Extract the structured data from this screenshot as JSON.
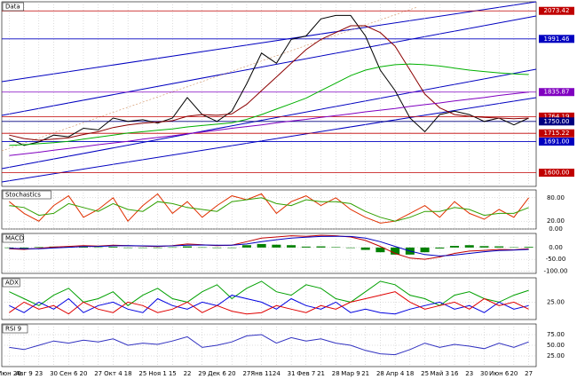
{
  "chart_data": [
    {
      "type": "line",
      "title": "Data",
      "categories": [
        "Июн 26",
        "Авг 9",
        "23",
        "30",
        "Сен 6",
        "20",
        "27",
        "Окт 4",
        "18",
        "25",
        "Ноя 1",
        "15",
        "22",
        "29",
        "Дек 6",
        "20",
        "27",
        "Янв 11",
        "24",
        "31",
        "Фев 7",
        "21",
        "28",
        "Мар 9",
        "21",
        "28",
        "Апр 4",
        "18",
        "25",
        "Май 3",
        "16",
        "23",
        "30",
        "Июн 6",
        "20",
        "27"
      ],
      "ylim": [
        1560,
        2100
      ],
      "series": [
        {
          "color": "#000000",
          "values": [
            1700,
            1680,
            1690,
            1710,
            1705,
            1730,
            1725,
            1760,
            1750,
            1755,
            1745,
            1760,
            1820,
            1770,
            1750,
            1780,
            1860,
            1950,
            1920,
            1990,
            2000,
            2050,
            2060,
            2060,
            2000,
            1900,
            1840,
            1760,
            1720,
            1770,
            1780,
            1770,
            1750,
            1760,
            1740,
            1760
          ]
        },
        {
          "color": "#8b0000",
          "values": [
            1710,
            1700,
            1695,
            1698,
            1702,
            1712,
            1720,
            1732,
            1740,
            1745,
            1748,
            1752,
            1765,
            1770,
            1768,
            1772,
            1800,
            1840,
            1880,
            1920,
            1960,
            1990,
            2010,
            2030,
            2030,
            2010,
            1970,
            1900,
            1830,
            1790,
            1770,
            1765,
            1762,
            1760,
            1758,
            1760
          ]
        },
        {
          "color": "#00b000",
          "values": [
            1680,
            1682,
            1685,
            1688,
            1692,
            1698,
            1704,
            1710,
            1716,
            1720,
            1724,
            1728,
            1734,
            1738,
            1742,
            1746,
            1756,
            1770,
            1786,
            1802,
            1818,
            1840,
            1862,
            1884,
            1900,
            1910,
            1916,
            1918,
            1916,
            1912,
            1906,
            1900,
            1896,
            1892,
            1889,
            1887
          ]
        },
        {
          "color": "#8000c0",
          "values": [
            1650,
            1655,
            1660,
            1666,
            1671,
            1676,
            1682,
            1687,
            1692,
            1698,
            1703,
            1708,
            1714,
            1719,
            1724,
            1730,
            1735,
            1740,
            1746,
            1751,
            1756,
            1762,
            1767,
            1772,
            1778,
            1783,
            1788,
            1794,
            1799,
            1804,
            1810,
            1815,
            1820,
            1826,
            1831,
            1836
          ]
        }
      ],
      "levels": [
        {
          "value": 2073.42,
          "color": "#c00000"
        },
        {
          "value": 1991.46,
          "color": "#0000c0"
        },
        {
          "value": 1835.87,
          "color": "#8000c0"
        },
        {
          "value": 1764.19,
          "color": "#c00000"
        },
        {
          "value": 1750,
          "label": "1750.00",
          "color": "#000080"
        },
        {
          "value": 1715.22,
          "color": "#c00000"
        },
        {
          "value": 1691,
          "label": "1691.00",
          "color": "#0000c0"
        },
        {
          "value": 1600,
          "label": "1600.00",
          "color": "#c00000"
        }
      ]
    },
    {
      "type": "line",
      "title": "Stochastics",
      "ylim": [
        0,
        100
      ],
      "yticks": [
        {
          "value": 0,
          "label": "0.00"
        },
        {
          "value": 20,
          "label": "20.00"
        },
        {
          "value": 80,
          "label": "80.00"
        }
      ],
      "series": [
        {
          "color": "#e03000",
          "values": [
            70,
            40,
            20,
            60,
            85,
            30,
            50,
            80,
            20,
            60,
            90,
            40,
            70,
            30,
            60,
            85,
            75,
            90,
            40,
            70,
            85,
            60,
            80,
            50,
            30,
            15,
            20,
            40,
            60,
            30,
            70,
            40,
            25,
            50,
            30,
            80
          ]
        },
        {
          "color": "#30a000",
          "values": [
            60,
            55,
            35,
            40,
            65,
            55,
            45,
            65,
            50,
            45,
            70,
            65,
            55,
            50,
            45,
            70,
            75,
            80,
            65,
            60,
            75,
            70,
            70,
            65,
            45,
            30,
            20,
            30,
            45,
            45,
            55,
            50,
            35,
            40,
            40,
            55
          ]
        }
      ]
    },
    {
      "type": "line",
      "title": "MACD",
      "ylim": [
        -110,
        60
      ],
      "yticks": [
        {
          "value": 0,
          "label": "0.00"
        },
        {
          "value": -50,
          "label": "-50.00"
        },
        {
          "value": -100,
          "label": "-100.00"
        }
      ],
      "series": [
        {
          "type": "bar",
          "color": "#008000",
          "values": [
            -2,
            -3,
            2,
            4,
            4,
            4,
            1,
            3,
            0,
            -1,
            -2,
            1,
            5,
            1,
            -2,
            0,
            10,
            15,
            12,
            10,
            4,
            5,
            2,
            -2,
            -10,
            -20,
            -30,
            -30,
            -20,
            -4,
            7,
            10,
            6,
            5,
            1,
            3
          ]
        },
        {
          "color": "#c00000",
          "values": [
            -5,
            -8,
            -3,
            2,
            5,
            8,
            6,
            10,
            8,
            6,
            4,
            8,
            15,
            12,
            8,
            10,
            25,
            40,
            45,
            50,
            48,
            52,
            50,
            45,
            30,
            5,
            -25,
            -45,
            -50,
            -40,
            -25,
            -15,
            -12,
            -8,
            -10,
            -5
          ]
        },
        {
          "color": "#0000c0",
          "values": [
            -3,
            -5,
            -5,
            -2,
            1,
            4,
            5,
            7,
            8,
            7,
            6,
            7,
            10,
            11,
            10,
            10,
            15,
            25,
            33,
            40,
            44,
            47,
            48,
            47,
            40,
            25,
            5,
            -15,
            -30,
            -36,
            -32,
            -25,
            -18,
            -13,
            -11,
            -8
          ]
        }
      ]
    },
    {
      "type": "line",
      "title": "ADX",
      "ylim": [
        0,
        60
      ],
      "yticks": [
        {
          "value": 25,
          "label": "25.00"
        }
      ],
      "series": [
        {
          "color": "#00a000",
          "values": [
            40,
            30,
            20,
            35,
            45,
            25,
            30,
            40,
            20,
            35,
            45,
            30,
            25,
            40,
            50,
            30,
            45,
            55,
            40,
            35,
            50,
            45,
            30,
            25,
            40,
            55,
            50,
            35,
            30,
            20,
            35,
            40,
            30,
            25,
            35,
            42
          ]
        },
        {
          "color": "#0000e0",
          "values": [
            20,
            10,
            25,
            15,
            30,
            10,
            20,
            25,
            15,
            10,
            30,
            20,
            15,
            25,
            20,
            35,
            30,
            25,
            15,
            30,
            20,
            15,
            25,
            10,
            15,
            10,
            8,
            15,
            20,
            25,
            15,
            20,
            10,
            25,
            15,
            20
          ]
        },
        {
          "color": "#e00000",
          "values": [
            10,
            25,
            15,
            20,
            8,
            25,
            15,
            10,
            25,
            20,
            10,
            15,
            25,
            10,
            20,
            12,
            8,
            10,
            20,
            15,
            10,
            20,
            15,
            25,
            30,
            35,
            40,
            25,
            15,
            20,
            25,
            15,
            30,
            20,
            25,
            15
          ]
        }
      ]
    },
    {
      "type": "line",
      "title": "RSI 9",
      "ylim": [
        0,
        100
      ],
      "yticks": [
        {
          "value": 25,
          "label": "25.00"
        },
        {
          "value": 50,
          "label": "50.00"
        },
        {
          "value": 75,
          "label": "75.00"
        }
      ],
      "series": [
        {
          "color": "#3030c0",
          "values": [
            45,
            40,
            50,
            60,
            55,
            62,
            58,
            65,
            50,
            55,
            52,
            60,
            70,
            45,
            50,
            58,
            72,
            75,
            55,
            68,
            60,
            65,
            55,
            50,
            38,
            30,
            28,
            40,
            55,
            45,
            52,
            48,
            42,
            55,
            45,
            58
          ]
        }
      ]
    }
  ]
}
